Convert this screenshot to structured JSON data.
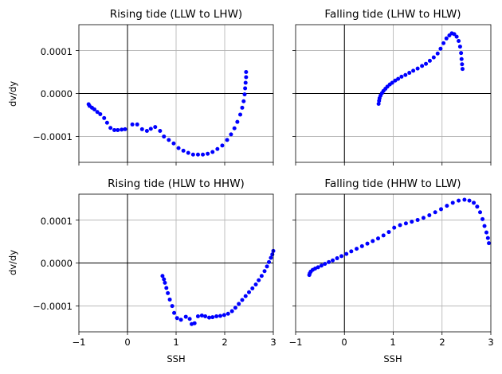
{
  "chart_data": [
    {
      "type": "scatter",
      "title": "Rising tide (LLW to LHW)",
      "xlabel": "",
      "ylabel": "dv/dy",
      "xlim": [
        -1,
        3
      ],
      "ylim": [
        -0.00016,
        0.00016
      ],
      "xticks": [
        "",
        "",
        "",
        "",
        ""
      ],
      "yticks": [
        "−0.0001",
        "0.0000",
        "0.0001"
      ],
      "grid": true,
      "marker_color": "#0000ff",
      "points": [
        [
          -0.8,
          -2.5e-05
        ],
        [
          -0.78,
          -2.9e-05
        ],
        [
          -0.73,
          -3.3e-05
        ],
        [
          -0.68,
          -3.7e-05
        ],
        [
          -0.62,
          -4.3e-05
        ],
        [
          -0.56,
          -4.8e-05
        ],
        [
          -0.48,
          -5.7e-05
        ],
        [
          -0.42,
          -6.8e-05
        ],
        [
          -0.35,
          -8e-05
        ],
        [
          -0.27,
          -8.5e-05
        ],
        [
          -0.2,
          -8.5e-05
        ],
        [
          -0.12,
          -8.4e-05
        ],
        [
          -0.05,
          -8.3e-05
        ],
        [
          0.1,
          -7.2e-05
        ],
        [
          0.2,
          -7.2e-05
        ],
        [
          0.3,
          -8.3e-05
        ],
        [
          0.4,
          -8.7e-05
        ],
        [
          0.48,
          -8.2e-05
        ],
        [
          0.57,
          -7.8e-05
        ],
        [
          0.67,
          -8.7e-05
        ],
        [
          0.75,
          -0.0001
        ],
        [
          0.85,
          -0.000108
        ],
        [
          0.95,
          -0.000116
        ],
        [
          1.05,
          -0.000127
        ],
        [
          1.15,
          -0.000133
        ],
        [
          1.25,
          -0.000138
        ],
        [
          1.35,
          -0.000142
        ],
        [
          1.45,
          -0.000142
        ],
        [
          1.55,
          -0.000142
        ],
        [
          1.65,
          -0.00014
        ],
        [
          1.75,
          -0.000136
        ],
        [
          1.85,
          -0.000129
        ],
        [
          1.95,
          -0.000121
        ],
        [
          2.05,
          -0.000108
        ],
        [
          2.13,
          -9.5e-05
        ],
        [
          2.2,
          -8.1e-05
        ],
        [
          2.26,
          -6.6e-05
        ],
        [
          2.32,
          -4.9e-05
        ],
        [
          2.36,
          -3.3e-05
        ],
        [
          2.39,
          -1.8e-05
        ],
        [
          2.41,
          -2e-06
        ],
        [
          2.42,
          1.2e-05
        ],
        [
          2.43,
          2.5e-05
        ],
        [
          2.44,
          3.8e-05
        ],
        [
          2.44,
          5e-05
        ]
      ]
    },
    {
      "type": "scatter",
      "title": "Falling tide (LHW to HLW)",
      "xlabel": "",
      "ylabel": "",
      "xlim": [
        -1,
        3
      ],
      "ylim": [
        -0.00016,
        0.00016
      ],
      "xticks": [
        "",
        "",
        "",
        "",
        ""
      ],
      "yticks": [
        "",
        "",
        ""
      ],
      "grid": true,
      "marker_color": "#0000ff",
      "points": [
        [
          0.7,
          -2.4e-05
        ],
        [
          0.71,
          -1.7e-05
        ],
        [
          0.72,
          -1.1e-05
        ],
        [
          0.74,
          -5e-06
        ],
        [
          0.77,
          1e-06
        ],
        [
          0.8,
          6e-06
        ],
        [
          0.84,
          1.1e-05
        ],
        [
          0.88,
          1.6e-05
        ],
        [
          0.93,
          2.1e-05
        ],
        [
          0.98,
          2.5e-05
        ],
        [
          1.04,
          3e-05
        ],
        [
          1.1,
          3.4e-05
        ],
        [
          1.17,
          3.9e-05
        ],
        [
          1.25,
          4.3e-05
        ],
        [
          1.33,
          4.8e-05
        ],
        [
          1.41,
          5.3e-05
        ],
        [
          1.5,
          5.8e-05
        ],
        [
          1.59,
          6.4e-05
        ],
        [
          1.67,
          6.9e-05
        ],
        [
          1.75,
          7.6e-05
        ],
        [
          1.83,
          8.4e-05
        ],
        [
          1.91,
          9.3e-05
        ],
        [
          1.97,
          0.000104
        ],
        [
          2.03,
          0.000117
        ],
        [
          2.09,
          0.000128
        ],
        [
          2.15,
          0.000135
        ],
        [
          2.2,
          0.00014
        ],
        [
          2.25,
          0.000138
        ],
        [
          2.3,
          0.000132
        ],
        [
          2.34,
          0.000122
        ],
        [
          2.37,
          0.000109
        ],
        [
          2.39,
          9.4e-05
        ],
        [
          2.4,
          8e-05
        ],
        [
          2.41,
          6.8e-05
        ],
        [
          2.42,
          5.7e-05
        ]
      ]
    },
    {
      "type": "scatter",
      "title": "Rising tide (HLW to HHW)",
      "xlabel": "SSH",
      "ylabel": "dv/dy",
      "xlim": [
        -1,
        3
      ],
      "ylim": [
        -0.00016,
        0.00016
      ],
      "xticks": [
        "−1",
        "0",
        "1",
        "2",
        "3"
      ],
      "yticks": [
        "−0.0001",
        "0.0000",
        "0.0001"
      ],
      "grid": true,
      "marker_color": "#0000ff",
      "points": [
        [
          0.72,
          -3e-05
        ],
        [
          0.75,
          -3.8e-05
        ],
        [
          0.77,
          -4.6e-05
        ],
        [
          0.8,
          -5.8e-05
        ],
        [
          0.83,
          -7e-05
        ],
        [
          0.87,
          -8.5e-05
        ],
        [
          0.92,
          -0.0001
        ],
        [
          0.96,
          -0.000116
        ],
        [
          1.02,
          -0.000128
        ],
        [
          1.1,
          -0.000132
        ],
        [
          1.2,
          -0.000125
        ],
        [
          1.28,
          -0.00013
        ],
        [
          1.32,
          -0.000142
        ],
        [
          1.38,
          -0.00014
        ],
        [
          1.45,
          -0.000124
        ],
        [
          1.53,
          -0.000122
        ],
        [
          1.6,
          -0.000124
        ],
        [
          1.68,
          -0.000127
        ],
        [
          1.75,
          -0.000126
        ],
        [
          1.83,
          -0.000124
        ],
        [
          1.91,
          -0.000123
        ],
        [
          1.99,
          -0.000121
        ],
        [
          2.07,
          -0.000118
        ],
        [
          2.15,
          -0.000112
        ],
        [
          2.22,
          -0.000104
        ],
        [
          2.29,
          -9.5e-05
        ],
        [
          2.36,
          -8.6e-05
        ],
        [
          2.43,
          -7.7e-05
        ],
        [
          2.5,
          -6.8e-05
        ],
        [
          2.57,
          -5.9e-05
        ],
        [
          2.64,
          -5e-05
        ],
        [
          2.7,
          -4e-05
        ],
        [
          2.76,
          -3e-05
        ],
        [
          2.82,
          -1.9e-05
        ],
        [
          2.87,
          -8e-06
        ],
        [
          2.91,
          2e-06
        ],
        [
          2.95,
          1.2e-05
        ],
        [
          2.98,
          2e-05
        ],
        [
          3.0,
          2.8e-05
        ]
      ]
    },
    {
      "type": "scatter",
      "title": "Falling tide (HHW to LLW)",
      "xlabel": "SSH",
      "ylabel": "",
      "xlim": [
        -1,
        3
      ],
      "ylim": [
        -0.00016,
        0.00016
      ],
      "xticks": [
        "−1",
        "0",
        "1",
        "2",
        "3"
      ],
      "yticks": [
        "",
        "",
        ""
      ],
      "grid": true,
      "marker_color": "#0000ff",
      "points": [
        [
          -0.72,
          -2.8e-05
        ],
        [
          -0.71,
          -2.4e-05
        ],
        [
          -0.69,
          -2e-05
        ],
        [
          -0.65,
          -1.6e-05
        ],
        [
          -0.6,
          -1.3e-05
        ],
        [
          -0.54,
          -1e-05
        ],
        [
          -0.47,
          -6e-06
        ],
        [
          -0.4,
          -2e-06
        ],
        [
          -0.32,
          2e-06
        ],
        [
          -0.24,
          6e-06
        ],
        [
          -0.15,
          1.1e-05
        ],
        [
          -0.06,
          1.6e-05
        ],
        [
          0.04,
          2.1e-05
        ],
        [
          0.14,
          2.7e-05
        ],
        [
          0.25,
          3.3e-05
        ],
        [
          0.36,
          3.9e-05
        ],
        [
          0.47,
          4.5e-05
        ],
        [
          0.58,
          5.1e-05
        ],
        [
          0.69,
          5.7e-05
        ],
        [
          0.8,
          6.4e-05
        ],
        [
          0.91,
          7.2e-05
        ],
        [
          1.02,
          8.2e-05
        ],
        [
          1.14,
          8.8e-05
        ],
        [
          1.26,
          9.2e-05
        ],
        [
          1.38,
          9.6e-05
        ],
        [
          1.5,
          0.0001
        ],
        [
          1.62,
          0.000105
        ],
        [
          1.74,
          0.000111
        ],
        [
          1.86,
          0.000118
        ],
        [
          1.98,
          0.000125
        ],
        [
          2.1,
          0.000133
        ],
        [
          2.22,
          0.00014
        ],
        [
          2.34,
          0.000145
        ],
        [
          2.46,
          0.000147
        ],
        [
          2.56,
          0.000145
        ],
        [
          2.65,
          0.00014
        ],
        [
          2.72,
          0.000131
        ],
        [
          2.78,
          0.000118
        ],
        [
          2.83,
          0.000102
        ],
        [
          2.87,
          8.6e-05
        ],
        [
          2.91,
          7.1e-05
        ],
        [
          2.94,
          5.8e-05
        ],
        [
          2.96,
          4.6e-05
        ]
      ]
    }
  ]
}
